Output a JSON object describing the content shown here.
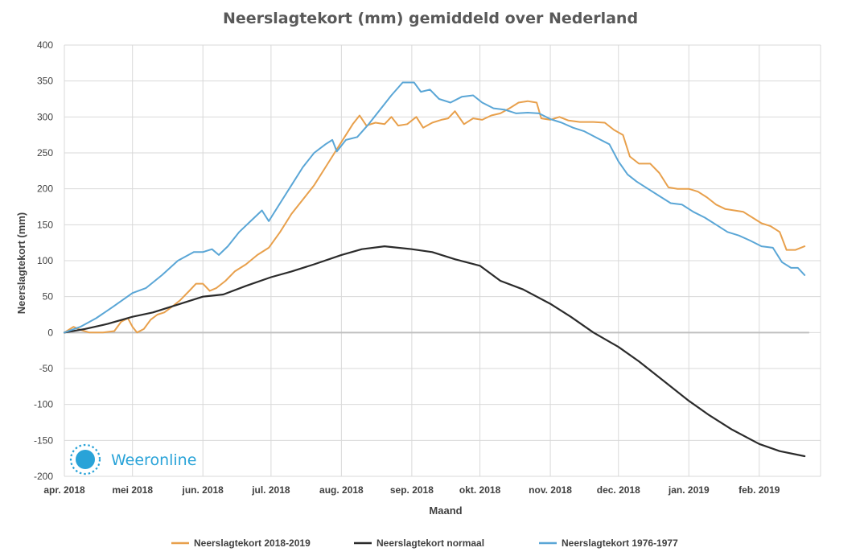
{
  "chart_data": {
    "type": "line",
    "title": "Neerslagtekort (mm) gemiddeld over Nederland",
    "xlabel": "Maand",
    "ylabel": "Neerslagtekort (mm)",
    "ylim": [
      -200,
      400
    ],
    "yticks": [
      -200,
      -150,
      -100,
      -50,
      0,
      50,
      100,
      150,
      200,
      250,
      300,
      350,
      400
    ],
    "xlim": [
      "2018-04-01",
      "2019-02-28"
    ],
    "xticks": [
      {
        "date": "2018-04-01",
        "label": "apr. 2018"
      },
      {
        "date": "2018-05-01",
        "label": "mei 2018"
      },
      {
        "date": "2018-06-01",
        "label": "jun. 2018"
      },
      {
        "date": "2018-07-01",
        "label": "jul. 2018"
      },
      {
        "date": "2018-08-01",
        "label": "aug. 2018"
      },
      {
        "date": "2018-09-01",
        "label": "sep. 2018"
      },
      {
        "date": "2018-10-01",
        "label": "okt. 2018"
      },
      {
        "date": "2018-11-01",
        "label": "nov. 2018"
      },
      {
        "date": "2018-12-01",
        "label": "dec. 2018"
      },
      {
        "date": "2019-01-01",
        "label": "jan. 2019"
      },
      {
        "date": "2019-02-01",
        "label": "feb. 2019"
      }
    ],
    "grid": true,
    "legend_position": "bottom",
    "series": [
      {
        "name": "Neerslagtekort 2018-2019",
        "color": "#e8a04c",
        "points": [
          [
            "2018-04-01",
            0
          ],
          [
            "2018-04-05",
            8
          ],
          [
            "2018-04-08",
            4
          ],
          [
            "2018-04-12",
            0
          ],
          [
            "2018-04-18",
            0
          ],
          [
            "2018-04-23",
            2
          ],
          [
            "2018-04-26",
            15
          ],
          [
            "2018-04-29",
            20
          ],
          [
            "2018-05-01",
            8
          ],
          [
            "2018-05-03",
            0
          ],
          [
            "2018-05-06",
            5
          ],
          [
            "2018-05-09",
            18
          ],
          [
            "2018-05-12",
            25
          ],
          [
            "2018-05-15",
            28
          ],
          [
            "2018-05-18",
            35
          ],
          [
            "2018-05-22",
            45
          ],
          [
            "2018-05-26",
            58
          ],
          [
            "2018-05-29",
            68
          ],
          [
            "2018-06-01",
            68
          ],
          [
            "2018-06-04",
            58
          ],
          [
            "2018-06-07",
            62
          ],
          [
            "2018-06-11",
            72
          ],
          [
            "2018-06-15",
            85
          ],
          [
            "2018-06-20",
            95
          ],
          [
            "2018-06-25",
            108
          ],
          [
            "2018-06-30",
            118
          ],
          [
            "2018-07-05",
            140
          ],
          [
            "2018-07-10",
            165
          ],
          [
            "2018-07-15",
            185
          ],
          [
            "2018-07-20",
            205
          ],
          [
            "2018-07-25",
            230
          ],
          [
            "2018-07-30",
            255
          ],
          [
            "2018-08-03",
            275
          ],
          [
            "2018-08-06",
            290
          ],
          [
            "2018-08-09",
            302
          ],
          [
            "2018-08-12",
            288
          ],
          [
            "2018-08-16",
            292
          ],
          [
            "2018-08-20",
            290
          ],
          [
            "2018-08-23",
            300
          ],
          [
            "2018-08-26",
            288
          ],
          [
            "2018-08-30",
            290
          ],
          [
            "2018-09-03",
            300
          ],
          [
            "2018-09-06",
            285
          ],
          [
            "2018-09-10",
            292
          ],
          [
            "2018-09-14",
            296
          ],
          [
            "2018-09-17",
            298
          ],
          [
            "2018-09-20",
            308
          ],
          [
            "2018-09-24",
            290
          ],
          [
            "2018-09-28",
            298
          ],
          [
            "2018-10-02",
            296
          ],
          [
            "2018-10-06",
            302
          ],
          [
            "2018-10-10",
            305
          ],
          [
            "2018-10-14",
            312
          ],
          [
            "2018-10-18",
            320
          ],
          [
            "2018-10-22",
            322
          ],
          [
            "2018-10-26",
            320
          ],
          [
            "2018-10-28",
            298
          ],
          [
            "2018-11-01",
            296
          ],
          [
            "2018-11-05",
            300
          ],
          [
            "2018-11-09",
            295
          ],
          [
            "2018-11-14",
            293
          ],
          [
            "2018-11-20",
            293
          ],
          [
            "2018-11-25",
            292
          ],
          [
            "2018-11-29",
            282
          ],
          [
            "2018-12-03",
            275
          ],
          [
            "2018-12-06",
            245
          ],
          [
            "2018-12-10",
            235
          ],
          [
            "2018-12-15",
            235
          ],
          [
            "2018-12-19",
            222
          ],
          [
            "2018-12-23",
            202
          ],
          [
            "2018-12-27",
            200
          ],
          [
            "2019-01-01",
            200
          ],
          [
            "2019-01-05",
            196
          ],
          [
            "2019-01-09",
            188
          ],
          [
            "2019-01-13",
            178
          ],
          [
            "2019-01-17",
            172
          ],
          [
            "2019-01-21",
            170
          ],
          [
            "2019-01-25",
            168
          ],
          [
            "2019-01-29",
            160
          ],
          [
            "2019-02-02",
            152
          ],
          [
            "2019-02-06",
            148
          ],
          [
            "2019-02-10",
            140
          ],
          [
            "2019-02-13",
            115
          ],
          [
            "2019-02-17",
            115
          ],
          [
            "2019-02-21",
            120
          ]
        ]
      },
      {
        "name": "Neerslagtekort normaal",
        "color": "#2b2b2b",
        "points": [
          [
            "2018-04-01",
            0
          ],
          [
            "2018-04-10",
            5
          ],
          [
            "2018-04-20",
            12
          ],
          [
            "2018-05-01",
            22
          ],
          [
            "2018-05-10",
            28
          ],
          [
            "2018-05-20",
            38
          ],
          [
            "2018-06-01",
            50
          ],
          [
            "2018-06-10",
            53
          ],
          [
            "2018-06-20",
            65
          ],
          [
            "2018-07-01",
            77
          ],
          [
            "2018-07-10",
            85
          ],
          [
            "2018-07-20",
            95
          ],
          [
            "2018-08-01",
            108
          ],
          [
            "2018-08-10",
            116
          ],
          [
            "2018-08-20",
            120
          ],
          [
            "2018-09-01",
            116
          ],
          [
            "2018-09-10",
            112
          ],
          [
            "2018-09-20",
            102
          ],
          [
            "2018-10-01",
            93
          ],
          [
            "2018-10-10",
            72
          ],
          [
            "2018-10-20",
            60
          ],
          [
            "2018-11-01",
            40
          ],
          [
            "2018-11-10",
            22
          ],
          [
            "2018-11-20",
            0
          ],
          [
            "2018-12-01",
            -20
          ],
          [
            "2018-12-10",
            -40
          ],
          [
            "2018-12-20",
            -65
          ],
          [
            "2019-01-01",
            -95
          ],
          [
            "2019-01-10",
            -115
          ],
          [
            "2019-01-20",
            -135
          ],
          [
            "2019-02-01",
            -155
          ],
          [
            "2019-02-10",
            -165
          ],
          [
            "2019-02-21",
            -172
          ]
        ]
      },
      {
        "name": "Neerslagtekort 1976-1977",
        "color": "#5aa6d6",
        "points": [
          [
            "2018-04-01",
            0
          ],
          [
            "2018-04-08",
            8
          ],
          [
            "2018-04-15",
            20
          ],
          [
            "2018-04-22",
            35
          ],
          [
            "2018-05-01",
            55
          ],
          [
            "2018-05-07",
            62
          ],
          [
            "2018-05-14",
            80
          ],
          [
            "2018-05-21",
            100
          ],
          [
            "2018-05-28",
            112
          ],
          [
            "2018-06-01",
            112
          ],
          [
            "2018-06-05",
            116
          ],
          [
            "2018-06-08",
            108
          ],
          [
            "2018-06-12",
            120
          ],
          [
            "2018-06-17",
            140
          ],
          [
            "2018-06-22",
            155
          ],
          [
            "2018-06-27",
            170
          ],
          [
            "2018-06-30",
            155
          ],
          [
            "2018-07-05",
            180
          ],
          [
            "2018-07-10",
            205
          ],
          [
            "2018-07-15",
            230
          ],
          [
            "2018-07-20",
            250
          ],
          [
            "2018-07-25",
            262
          ],
          [
            "2018-07-28",
            268
          ],
          [
            "2018-07-30",
            252
          ],
          [
            "2018-08-03",
            268
          ],
          [
            "2018-08-08",
            272
          ],
          [
            "2018-08-13",
            290
          ],
          [
            "2018-08-18",
            310
          ],
          [
            "2018-08-23",
            330
          ],
          [
            "2018-08-28",
            348
          ],
          [
            "2018-09-02",
            348
          ],
          [
            "2018-09-05",
            335
          ],
          [
            "2018-09-09",
            338
          ],
          [
            "2018-09-13",
            325
          ],
          [
            "2018-09-18",
            320
          ],
          [
            "2018-09-23",
            328
          ],
          [
            "2018-09-28",
            330
          ],
          [
            "2018-10-02",
            320
          ],
          [
            "2018-10-07",
            312
          ],
          [
            "2018-10-12",
            310
          ],
          [
            "2018-10-17",
            305
          ],
          [
            "2018-10-22",
            306
          ],
          [
            "2018-10-27",
            305
          ],
          [
            "2018-11-01",
            297
          ],
          [
            "2018-11-06",
            292
          ],
          [
            "2018-11-11",
            285
          ],
          [
            "2018-11-16",
            280
          ],
          [
            "2018-11-22",
            270
          ],
          [
            "2018-11-27",
            262
          ],
          [
            "2018-12-01",
            238
          ],
          [
            "2018-12-05",
            220
          ],
          [
            "2018-12-09",
            210
          ],
          [
            "2018-12-14",
            200
          ],
          [
            "2018-12-19",
            190
          ],
          [
            "2018-12-24",
            180
          ],
          [
            "2018-12-29",
            178
          ],
          [
            "2019-01-03",
            168
          ],
          [
            "2019-01-08",
            160
          ],
          [
            "2019-01-13",
            150
          ],
          [
            "2019-01-18",
            140
          ],
          [
            "2019-01-23",
            135
          ],
          [
            "2019-01-28",
            128
          ],
          [
            "2019-02-02",
            120
          ],
          [
            "2019-02-07",
            118
          ],
          [
            "2019-02-11",
            98
          ],
          [
            "2019-02-15",
            90
          ],
          [
            "2019-02-18",
            90
          ],
          [
            "2019-02-21",
            80
          ]
        ]
      }
    ]
  },
  "brand": {
    "name": "Weeronline",
    "color": "#29a3d8"
  }
}
